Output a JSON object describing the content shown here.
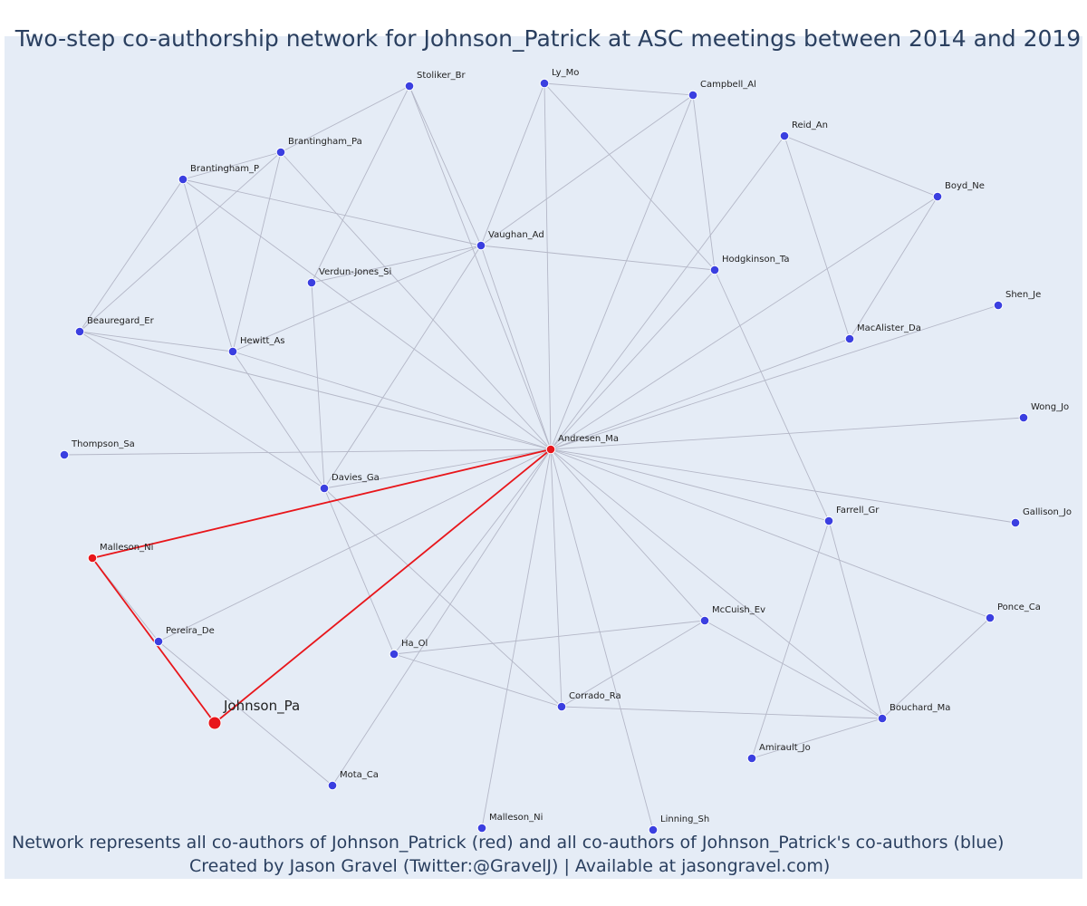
{
  "title": "Two-step co-authorship network for Johnson_Patrick at ASC meetings between 2014 and 2019",
  "footnote": {
    "line1": "Network represents all co-authors of Johnson_Patrick (red) and all co-authors of Johnson_Patrick's co-authors (blue)",
    "line2": "Created by Jason Gravel (Twitter:@GravelJ) | Available at jasongravel.com)"
  },
  "colors": {
    "background": "#e5ecf6",
    "edge": "#b4b7c7",
    "focal_edge": "#e8161b",
    "coauthor_node": "#e8161b",
    "second_step_node": "#3b3fe0",
    "node_outline": "#ffffff",
    "title_text": "#2a3f5f"
  },
  "nodes": [
    {
      "id": "Johnson_Pa",
      "label": "Johnson_Pa",
      "role": "focal"
    },
    {
      "id": "Andresen_Ma",
      "label": "Andresen_Ma",
      "role": "coauthor"
    },
    {
      "id": "Malleson_Ni_1",
      "label": "Malleson_Ni",
      "role": "coauthor"
    },
    {
      "id": "Stoliker_Br",
      "label": "Stoliker_Br",
      "role": "second_step"
    },
    {
      "id": "Ly_Mo",
      "label": "Ly_Mo",
      "role": "second_step"
    },
    {
      "id": "Campbell_Al",
      "label": "Campbell_Al",
      "role": "second_step"
    },
    {
      "id": "Reid_An",
      "label": "Reid_An",
      "role": "second_step"
    },
    {
      "id": "Boyd_Ne",
      "label": "Boyd_Ne",
      "role": "second_step"
    },
    {
      "id": "Brantingham_Pa",
      "label": "Brantingham_Pa",
      "role": "second_step"
    },
    {
      "id": "Brantingham_P",
      "label": "Brantingham_P",
      "role": "second_step"
    },
    {
      "id": "Vaughan_Ad",
      "label": "Vaughan_Ad",
      "role": "second_step"
    },
    {
      "id": "Hodgkinson_Ta",
      "label": "Hodgkinson_Ta",
      "role": "second_step"
    },
    {
      "id": "Verdun-Jones_Si",
      "label": "Verdun-Jones_Si",
      "role": "second_step"
    },
    {
      "id": "Shen_Je",
      "label": "Shen_Je",
      "role": "second_step"
    },
    {
      "id": "Beauregard_Er",
      "label": "Beauregard_Er",
      "role": "second_step"
    },
    {
      "id": "MacAlister_Da",
      "label": "MacAlister_Da",
      "role": "second_step"
    },
    {
      "id": "Hewitt_As",
      "label": "Hewitt_As",
      "role": "second_step"
    },
    {
      "id": "Wong_Jo",
      "label": "Wong_Jo",
      "role": "second_step"
    },
    {
      "id": "Thompson_Sa",
      "label": "Thompson_Sa",
      "role": "second_step"
    },
    {
      "id": "Davies_Ga",
      "label": "Davies_Ga",
      "role": "second_step"
    },
    {
      "id": "Farrell_Gr",
      "label": "Farrell_Gr",
      "role": "second_step"
    },
    {
      "id": "Gallison_Jo",
      "label": "Gallison_Jo",
      "role": "second_step"
    },
    {
      "id": "Ponce_Ca",
      "label": "Ponce_Ca",
      "role": "second_step"
    },
    {
      "id": "Pereira_De",
      "label": "Pereira_De",
      "role": "second_step"
    },
    {
      "id": "McCuish_Ev",
      "label": "McCuish_Ev",
      "role": "second_step"
    },
    {
      "id": "Ha_Ol",
      "label": "Ha_Ol",
      "role": "second_step"
    },
    {
      "id": "Corrado_Ra",
      "label": "Corrado_Ra",
      "role": "second_step"
    },
    {
      "id": "Bouchard_Ma",
      "label": "Bouchard_Ma",
      "role": "second_step"
    },
    {
      "id": "Amirault_Jo",
      "label": "Amirault_Jo",
      "role": "second_step"
    },
    {
      "id": "Mota_Ca",
      "label": "Mota_Ca",
      "role": "second_step"
    },
    {
      "id": "Malleson_Ni_2",
      "label": "Malleson_Ni",
      "role": "second_step"
    },
    {
      "id": "Linning_Sh",
      "label": "Linning_Sh",
      "role": "second_step"
    }
  ],
  "edges": [
    [
      "Johnson_Pa",
      "Andresen_Ma"
    ],
    [
      "Johnson_Pa",
      "Malleson_Ni_1"
    ],
    [
      "Andresen_Ma",
      "Malleson_Ni_1"
    ],
    [
      "Andresen_Ma",
      "Stoliker_Br"
    ],
    [
      "Andresen_Ma",
      "Ly_Mo"
    ],
    [
      "Andresen_Ma",
      "Campbell_Al"
    ],
    [
      "Andresen_Ma",
      "Reid_An"
    ],
    [
      "Andresen_Ma",
      "Boyd_Ne"
    ],
    [
      "Andresen_Ma",
      "Brantingham_Pa"
    ],
    [
      "Andresen_Ma",
      "Brantingham_P"
    ],
    [
      "Andresen_Ma",
      "Vaughan_Ad"
    ],
    [
      "Andresen_Ma",
      "Hodgkinson_Ta"
    ],
    [
      "Andresen_Ma",
      "Shen_Je"
    ],
    [
      "Andresen_Ma",
      "MacAlister_Da"
    ],
    [
      "Andresen_Ma",
      "Beauregard_Er"
    ],
    [
      "Andresen_Ma",
      "Hewitt_As"
    ],
    [
      "Andresen_Ma",
      "Wong_Jo"
    ],
    [
      "Andresen_Ma",
      "Thompson_Sa"
    ],
    [
      "Andresen_Ma",
      "Davies_Ga"
    ],
    [
      "Andresen_Ma",
      "Farrell_Gr"
    ],
    [
      "Andresen_Ma",
      "Gallison_Jo"
    ],
    [
      "Andresen_Ma",
      "Ponce_Ca"
    ],
    [
      "Andresen_Ma",
      "Pereira_De"
    ],
    [
      "Andresen_Ma",
      "McCuish_Ev"
    ],
    [
      "Andresen_Ma",
      "Ha_Ol"
    ],
    [
      "Andresen_Ma",
      "Corrado_Ra"
    ],
    [
      "Andresen_Ma",
      "Bouchard_Ma"
    ],
    [
      "Andresen_Ma",
      "Mota_Ca"
    ],
    [
      "Andresen_Ma",
      "Malleson_Ni_2"
    ],
    [
      "Andresen_Ma",
      "Linning_Sh"
    ],
    [
      "Malleson_Ni_1",
      "Pereira_De"
    ],
    [
      "Pereira_De",
      "Mota_Ca"
    ],
    [
      "Stoliker_Br",
      "Brantingham_Pa"
    ],
    [
      "Stoliker_Br",
      "Verdun-Jones_Si"
    ],
    [
      "Stoliker_Br",
      "Vaughan_Ad"
    ],
    [
      "Ly_Mo",
      "Campbell_Al"
    ],
    [
      "Ly_Mo",
      "Vaughan_Ad"
    ],
    [
      "Ly_Mo",
      "Hodgkinson_Ta"
    ],
    [
      "Campbell_Al",
      "Vaughan_Ad"
    ],
    [
      "Campbell_Al",
      "Hodgkinson_Ta"
    ],
    [
      "Reid_An",
      "Boyd_Ne"
    ],
    [
      "Reid_An",
      "MacAlister_Da"
    ],
    [
      "Boyd_Ne",
      "MacAlister_Da"
    ],
    [
      "Brantingham_Pa",
      "Brantingham_P"
    ],
    [
      "Brantingham_Pa",
      "Beauregard_Er"
    ],
    [
      "Brantingham_Pa",
      "Hewitt_As"
    ],
    [
      "Brantingham_P",
      "Vaughan_Ad"
    ],
    [
      "Brantingham_P",
      "Beauregard_Er"
    ],
    [
      "Brantingham_P",
      "Hewitt_As"
    ],
    [
      "Vaughan_Ad",
      "Hodgkinson_Ta"
    ],
    [
      "Vaughan_Ad",
      "Verdun-Jones_Si"
    ],
    [
      "Vaughan_Ad",
      "Hewitt_As"
    ],
    [
      "Vaughan_Ad",
      "Davies_Ga"
    ],
    [
      "Verdun-Jones_Si",
      "Davies_Ga"
    ],
    [
      "Hodgkinson_Ta",
      "Farrell_Gr"
    ],
    [
      "Beauregard_Er",
      "Hewitt_As"
    ],
    [
      "Beauregard_Er",
      "Davies_Ga"
    ],
    [
      "Hewitt_As",
      "Davies_Ga"
    ],
    [
      "Davies_Ga",
      "Ha_Ol"
    ],
    [
      "Davies_Ga",
      "Corrado_Ra"
    ],
    [
      "Farrell_Gr",
      "Amirault_Jo"
    ],
    [
      "Farrell_Gr",
      "Bouchard_Ma"
    ],
    [
      "Ponce_Ca",
      "Bouchard_Ma"
    ],
    [
      "McCuish_Ev",
      "Ha_Ol"
    ],
    [
      "McCuish_Ev",
      "Corrado_Ra"
    ],
    [
      "McCuish_Ev",
      "Bouchard_Ma"
    ],
    [
      "Ha_Ol",
      "Corrado_Ra"
    ],
    [
      "Corrado_Ra",
      "Bouchard_Ma"
    ],
    [
      "Amirault_Jo",
      "Bouchard_Ma"
    ]
  ]
}
